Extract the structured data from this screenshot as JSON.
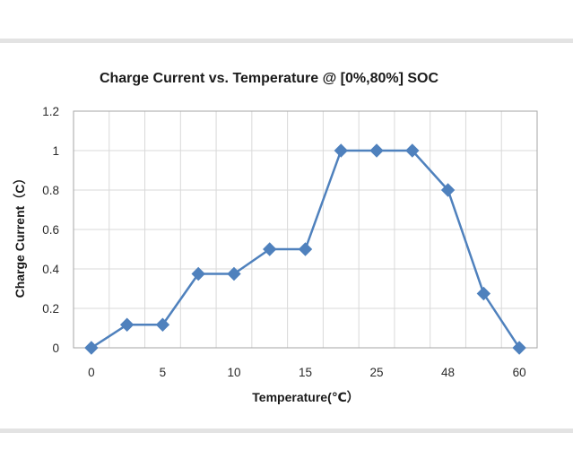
{
  "chart_data": {
    "type": "line",
    "title": "Charge Current vs. Temperature @ [0%,80%] SOC",
    "xlabel": "Temperature(℃）",
    "ylabel": "Charge Current（C）",
    "categories": [
      "0",
      "",
      "5",
      "",
      "10",
      "",
      "15",
      "",
      "25",
      "",
      "48",
      "",
      "60"
    ],
    "series": [
      {
        "values": [
          0,
          0.117,
          0.117,
          0.375,
          0.375,
          0.5,
          0.5,
          1,
          1,
          1,
          0.8,
          0.275,
          0
        ]
      }
    ],
    "yticks": [
      "0",
      "0.2",
      "0.4",
      "0.6",
      "0.8",
      "1",
      "1.2"
    ],
    "ylim": [
      0,
      1.2
    ],
    "grid": true,
    "legend": "none",
    "colors": {
      "series": "#4f81bd",
      "grid": "#d9d9d9",
      "axis": "#a6a6a6"
    },
    "marker": "diamond"
  }
}
